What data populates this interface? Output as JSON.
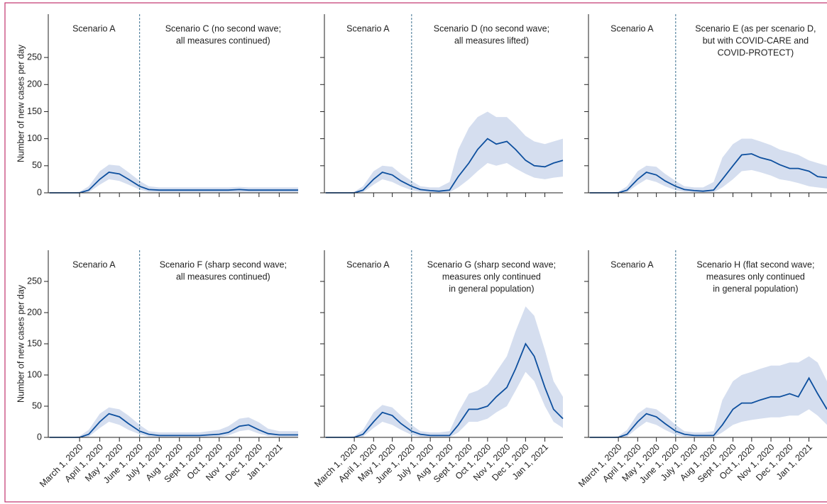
{
  "chart_data": [
    {
      "type": "line",
      "ylabel": "Number of new cases per day",
      "left_text": [
        "Scenario A"
      ],
      "right_text": [
        "Scenario C (no second wave;",
        "all measures continued)"
      ],
      "divider": "2020-06-01",
      "xlim": [
        "2020-01-13",
        "2021-01-30"
      ],
      "xticks": [
        "2020-03-01",
        "2020-04-01",
        "2020-05-01",
        "2020-06-01",
        "2020-07-01",
        "2020-08-01",
        "2020-09-01",
        "2020-10-01",
        "2020-11-01",
        "2020-12-01",
        "2021-01-01"
      ],
      "ylim": [
        0,
        330
      ],
      "yticks": [
        0,
        50,
        100,
        150,
        200,
        250
      ],
      "color": "#0d4f9e",
      "band_color": "#d5deef",
      "x": [
        "2020-01-15",
        "2020-02-01",
        "2020-02-15",
        "2020-03-01",
        "2020-03-15",
        "2020-04-01",
        "2020-04-15",
        "2020-05-01",
        "2020-05-15",
        "2020-06-01",
        "2020-06-15",
        "2020-07-01",
        "2020-07-15",
        "2020-08-01",
        "2020-08-15",
        "2020-09-01",
        "2020-09-15",
        "2020-10-01",
        "2020-10-15",
        "2020-11-01",
        "2020-11-15",
        "2020-12-01",
        "2020-12-15",
        "2021-01-01",
        "2021-01-15",
        "2021-01-30"
      ],
      "values": [
        0,
        0,
        0,
        0,
        5,
        25,
        38,
        35,
        25,
        12,
        6,
        5,
        5,
        5,
        5,
        5,
        5,
        5,
        5,
        6,
        5,
        5,
        5,
        5,
        5,
        5
      ],
      "upper": [
        0,
        0,
        0,
        2,
        12,
        40,
        52,
        50,
        38,
        22,
        12,
        10,
        10,
        10,
        10,
        10,
        10,
        10,
        10,
        11,
        10,
        10,
        10,
        10,
        10,
        10
      ],
      "lower": [
        0,
        0,
        0,
        0,
        1,
        15,
        25,
        22,
        15,
        6,
        2,
        1,
        1,
        1,
        1,
        1,
        1,
        1,
        1,
        1,
        1,
        1,
        1,
        1,
        1,
        1
      ]
    },
    {
      "type": "line",
      "left_text": [
        "Scenario A"
      ],
      "right_text": [
        "Scenario D (no second wave;",
        "all measures lifted)"
      ],
      "divider": "2020-06-01",
      "xlim": [
        "2020-01-13",
        "2021-01-30"
      ],
      "xticks": [
        "2020-03-01",
        "2020-04-01",
        "2020-05-01",
        "2020-06-01",
        "2020-07-01",
        "2020-08-01",
        "2020-09-01",
        "2020-10-01",
        "2020-11-01",
        "2020-12-01",
        "2021-01-01"
      ],
      "ylim": [
        0,
        330
      ],
      "yticks": [
        0,
        50,
        100,
        150,
        200,
        250
      ],
      "color": "#0d4f9e",
      "band_color": "#d5deef",
      "x": [
        "2020-01-15",
        "2020-02-01",
        "2020-02-15",
        "2020-03-01",
        "2020-03-15",
        "2020-04-01",
        "2020-04-15",
        "2020-05-01",
        "2020-05-15",
        "2020-06-01",
        "2020-06-15",
        "2020-07-01",
        "2020-07-15",
        "2020-08-01",
        "2020-08-15",
        "2020-09-01",
        "2020-09-15",
        "2020-10-01",
        "2020-10-15",
        "2020-11-01",
        "2020-11-15",
        "2020-12-01",
        "2020-12-15",
        "2021-01-01",
        "2021-01-15",
        "2021-01-30"
      ],
      "values": [
        0,
        0,
        0,
        0,
        5,
        25,
        38,
        33,
        22,
        12,
        6,
        4,
        3,
        5,
        30,
        55,
        80,
        100,
        90,
        95,
        80,
        60,
        50,
        48,
        55,
        60
      ],
      "upper": [
        0,
        0,
        0,
        2,
        12,
        40,
        50,
        48,
        35,
        22,
        12,
        10,
        10,
        20,
        80,
        120,
        140,
        150,
        140,
        140,
        125,
        105,
        95,
        90,
        95,
        100
      ],
      "lower": [
        0,
        0,
        0,
        0,
        1,
        15,
        25,
        20,
        12,
        5,
        2,
        1,
        0,
        1,
        10,
        25,
        40,
        55,
        50,
        55,
        45,
        35,
        28,
        25,
        28,
        30
      ]
    },
    {
      "type": "line",
      "left_text": [
        "Scenario A"
      ],
      "right_text": [
        "Scenario E (as per scenario D,",
        "but with COVID-CARE and",
        "COVID-PROTECT)"
      ],
      "divider": "2020-06-01",
      "xlim": [
        "2020-01-13",
        "2021-01-30"
      ],
      "xticks": [
        "2020-03-01",
        "2020-04-01",
        "2020-05-01",
        "2020-06-01",
        "2020-07-01",
        "2020-08-01",
        "2020-09-01",
        "2020-10-01",
        "2020-11-01",
        "2020-12-01",
        "2021-01-01"
      ],
      "ylim": [
        0,
        330
      ],
      "yticks": [
        0,
        50,
        100,
        150,
        200,
        250
      ],
      "color": "#0d4f9e",
      "band_color": "#d5deef",
      "x": [
        "2020-01-15",
        "2020-02-01",
        "2020-02-15",
        "2020-03-01",
        "2020-03-15",
        "2020-04-01",
        "2020-04-15",
        "2020-05-01",
        "2020-05-15",
        "2020-06-01",
        "2020-06-15",
        "2020-07-01",
        "2020-07-15",
        "2020-08-01",
        "2020-08-15",
        "2020-09-01",
        "2020-09-15",
        "2020-10-01",
        "2020-10-15",
        "2020-11-01",
        "2020-11-15",
        "2020-12-01",
        "2020-12-15",
        "2021-01-01",
        "2021-01-15",
        "2021-01-30"
      ],
      "values": [
        0,
        0,
        0,
        0,
        5,
        25,
        38,
        33,
        22,
        12,
        6,
        4,
        3,
        5,
        25,
        50,
        70,
        72,
        65,
        60,
        52,
        45,
        45,
        40,
        30,
        28
      ],
      "upper": [
        0,
        0,
        0,
        2,
        12,
        40,
        50,
        48,
        35,
        22,
        12,
        10,
        10,
        20,
        65,
        90,
        100,
        100,
        95,
        88,
        80,
        75,
        70,
        60,
        55,
        50
      ],
      "lower": [
        0,
        0,
        0,
        0,
        1,
        15,
        25,
        20,
        12,
        5,
        2,
        1,
        0,
        1,
        10,
        25,
        40,
        42,
        38,
        32,
        25,
        22,
        18,
        12,
        10,
        8
      ]
    },
    {
      "type": "line",
      "ylabel": "Number of new cases per day",
      "left_text": [
        "Scenario A"
      ],
      "right_text": [
        "Scenario F (sharp second wave;",
        "all measures continued)"
      ],
      "divider": "2020-06-01",
      "xlim": [
        "2020-01-13",
        "2021-01-30"
      ],
      "xticks": [
        {
          "value": "2020-03-01",
          "label": "March 1, 2020"
        },
        {
          "value": "2020-04-01",
          "label": "April 1, 2020"
        },
        {
          "value": "2020-05-01",
          "label": "May 1, 2020"
        },
        {
          "value": "2020-06-01",
          "label": "June 1, 2020"
        },
        {
          "value": "2020-07-01",
          "label": "July 1, 2020"
        },
        {
          "value": "2020-08-01",
          "label": "Aug 1, 2020"
        },
        {
          "value": "2020-09-01",
          "label": "Sept 1, 2020"
        },
        {
          "value": "2020-10-01",
          "label": "Oct 1, 2020"
        },
        {
          "value": "2020-11-01",
          "label": "Nov 1, 2020"
        },
        {
          "value": "2020-12-01",
          "label": "Dec 1, 2020"
        },
        {
          "value": "2021-01-01",
          "label": "Jan 1, 2021"
        }
      ],
      "ylim": [
        0,
        300
      ],
      "yticks": [
        0,
        50,
        100,
        150,
        200,
        250
      ],
      "color": "#0d4f9e",
      "band_color": "#d5deef",
      "x": [
        "2020-01-15",
        "2020-02-01",
        "2020-02-15",
        "2020-03-01",
        "2020-03-15",
        "2020-04-01",
        "2020-04-15",
        "2020-05-01",
        "2020-05-15",
        "2020-06-01",
        "2020-06-15",
        "2020-07-01",
        "2020-07-15",
        "2020-08-01",
        "2020-08-15",
        "2020-09-01",
        "2020-09-15",
        "2020-10-01",
        "2020-10-15",
        "2020-11-01",
        "2020-11-15",
        "2020-12-01",
        "2020-12-15",
        "2021-01-01",
        "2021-01-15",
        "2021-01-30"
      ],
      "values": [
        0,
        0,
        0,
        0,
        5,
        25,
        38,
        33,
        22,
        10,
        5,
        3,
        3,
        3,
        3,
        3,
        4,
        5,
        8,
        18,
        20,
        12,
        6,
        4,
        4,
        4
      ],
      "upper": [
        0,
        0,
        0,
        2,
        12,
        38,
        48,
        45,
        35,
        20,
        10,
        8,
        8,
        8,
        8,
        8,
        10,
        12,
        18,
        30,
        32,
        24,
        14,
        10,
        10,
        10
      ],
      "lower": [
        0,
        0,
        0,
        0,
        1,
        15,
        25,
        20,
        12,
        5,
        1,
        0,
        0,
        0,
        0,
        0,
        1,
        1,
        3,
        10,
        12,
        6,
        2,
        1,
        1,
        1
      ]
    },
    {
      "type": "line",
      "left_text": [
        "Scenario A"
      ],
      "right_text": [
        "Scenario G (sharp second wave;",
        "measures only continued",
        "in general population)"
      ],
      "divider": "2020-06-01",
      "xlim": [
        "2020-01-13",
        "2021-01-30"
      ],
      "xticks": [
        {
          "value": "2020-03-01",
          "label": "March 1, 2020"
        },
        {
          "value": "2020-04-01",
          "label": "April 1, 2020"
        },
        {
          "value": "2020-05-01",
          "label": "May 1, 2020"
        },
        {
          "value": "2020-06-01",
          "label": "June 1, 2020"
        },
        {
          "value": "2020-07-01",
          "label": "July 1, 2020"
        },
        {
          "value": "2020-08-01",
          "label": "Aug 1, 2020"
        },
        {
          "value": "2020-09-01",
          "label": "Sept 1, 2020"
        },
        {
          "value": "2020-10-01",
          "label": "Oct 1, 2020"
        },
        {
          "value": "2020-11-01",
          "label": "Nov 1, 2020"
        },
        {
          "value": "2020-12-01",
          "label": "Dec 1, 2020"
        },
        {
          "value": "2021-01-01",
          "label": "Jan 1, 2021"
        }
      ],
      "ylim": [
        0,
        300
      ],
      "yticks": [
        0,
        50,
        100,
        150,
        200,
        250
      ],
      "color": "#0d4f9e",
      "band_color": "#d5deef",
      "x": [
        "2020-01-15",
        "2020-02-01",
        "2020-02-15",
        "2020-03-01",
        "2020-03-15",
        "2020-04-01",
        "2020-04-15",
        "2020-05-01",
        "2020-05-15",
        "2020-06-01",
        "2020-06-15",
        "2020-07-01",
        "2020-07-15",
        "2020-08-01",
        "2020-08-15",
        "2020-09-01",
        "2020-09-15",
        "2020-10-01",
        "2020-10-15",
        "2020-11-01",
        "2020-11-15",
        "2020-12-01",
        "2020-12-15",
        "2021-01-01",
        "2021-01-15",
        "2021-01-30"
      ],
      "values": [
        0,
        0,
        0,
        0,
        5,
        25,
        40,
        35,
        22,
        10,
        5,
        3,
        3,
        3,
        20,
        45,
        45,
        50,
        65,
        80,
        110,
        150,
        130,
        80,
        45,
        30
      ],
      "upper": [
        0,
        0,
        0,
        2,
        12,
        40,
        52,
        48,
        35,
        20,
        10,
        8,
        8,
        10,
        40,
        70,
        75,
        85,
        105,
        130,
        170,
        210,
        195,
        140,
        90,
        65
      ],
      "lower": [
        0,
        0,
        0,
        0,
        1,
        15,
        25,
        20,
        12,
        4,
        1,
        0,
        0,
        0,
        8,
        25,
        25,
        30,
        40,
        50,
        75,
        105,
        90,
        50,
        25,
        15
      ]
    },
    {
      "type": "line",
      "left_text": [
        "Scenario A"
      ],
      "right_text": [
        "Scenario H (flat second wave;",
        "measures only continued",
        "in general population)"
      ],
      "divider": "2020-06-01",
      "xlim": [
        "2020-01-13",
        "2021-01-30"
      ],
      "xticks": [
        {
          "value": "2020-03-01",
          "label": "March 1, 2020"
        },
        {
          "value": "2020-04-01",
          "label": "April 1, 2020"
        },
        {
          "value": "2020-05-01",
          "label": "May 1, 2020"
        },
        {
          "value": "2020-06-01",
          "label": "June 1, 2020"
        },
        {
          "value": "2020-07-01",
          "label": "July 1, 2020"
        },
        {
          "value": "2020-08-01",
          "label": "Aug 1, 2020"
        },
        {
          "value": "2020-09-01",
          "label": "Sept 1, 2020"
        },
        {
          "value": "2020-10-01",
          "label": "Oct 1, 2020"
        },
        {
          "value": "2020-11-01",
          "label": "Nov 1, 2020"
        },
        {
          "value": "2020-12-01",
          "label": "Dec 1, 2020"
        },
        {
          "value": "2021-01-01",
          "label": "Jan 1, 2021"
        }
      ],
      "ylim": [
        0,
        300
      ],
      "yticks": [
        0,
        50,
        100,
        150,
        200,
        250
      ],
      "color": "#0d4f9e",
      "band_color": "#d5deef",
      "x": [
        "2020-01-15",
        "2020-02-01",
        "2020-02-15",
        "2020-03-01",
        "2020-03-15",
        "2020-04-01",
        "2020-04-15",
        "2020-05-01",
        "2020-05-15",
        "2020-06-01",
        "2020-06-15",
        "2020-07-01",
        "2020-07-15",
        "2020-08-01",
        "2020-08-15",
        "2020-09-01",
        "2020-09-15",
        "2020-10-01",
        "2020-10-15",
        "2020-11-01",
        "2020-11-15",
        "2020-12-01",
        "2020-12-15",
        "2021-01-01",
        "2021-01-15",
        "2021-01-30"
      ],
      "values": [
        0,
        0,
        0,
        0,
        5,
        25,
        38,
        33,
        22,
        10,
        5,
        3,
        3,
        3,
        20,
        45,
        55,
        55,
        60,
        65,
        65,
        70,
        65,
        95,
        70,
        45
      ],
      "upper": [
        0,
        0,
        0,
        2,
        12,
        38,
        48,
        45,
        35,
        20,
        10,
        8,
        8,
        10,
        60,
        90,
        100,
        105,
        110,
        115,
        115,
        120,
        120,
        130,
        120,
        90
      ],
      "lower": [
        0,
        0,
        0,
        0,
        1,
        15,
        25,
        20,
        12,
        4,
        1,
        0,
        0,
        0,
        8,
        20,
        25,
        28,
        30,
        32,
        32,
        35,
        35,
        45,
        35,
        20
      ]
    }
  ]
}
